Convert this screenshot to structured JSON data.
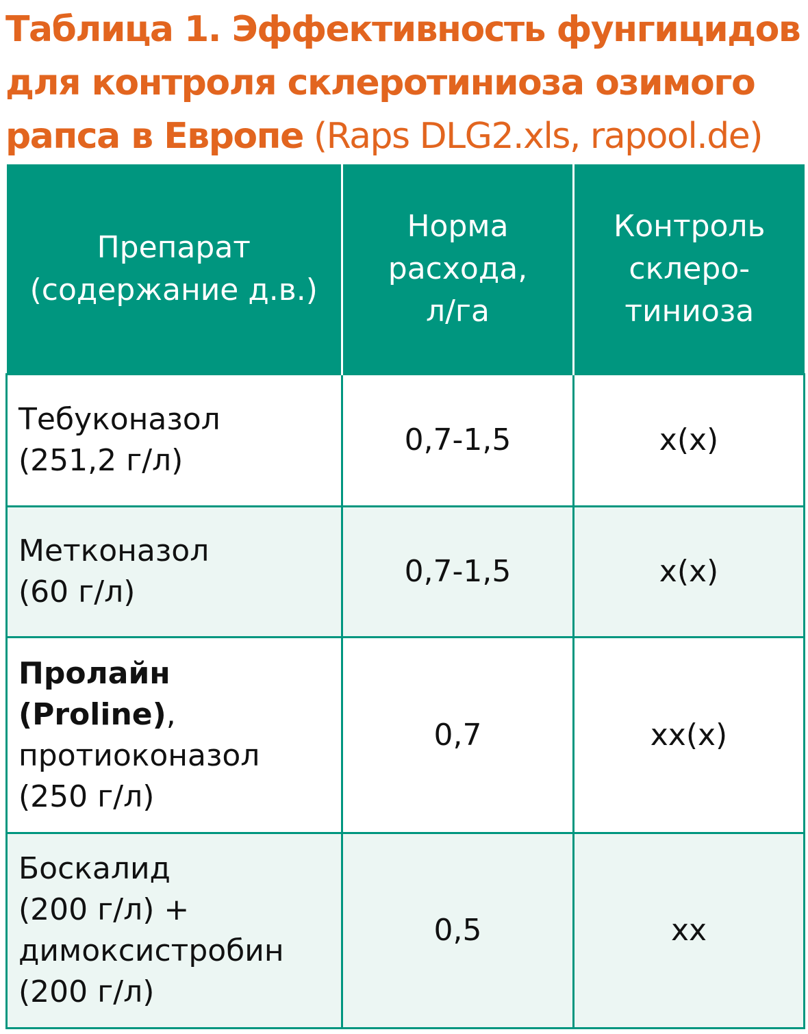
{
  "title": {
    "bold": "Таблица 1. Эффективность фунгицидов для контроля склеротиниоза озимого рапса в Европе",
    "source": " (Raps DLG2.xls, rapool.de)"
  },
  "table": {
    "headers": [
      {
        "lines": [
          "Препарат",
          "(содержание д.в.)"
        ]
      },
      {
        "lines": [
          "Норма",
          "расхода,",
          "л/га"
        ]
      },
      {
        "lines": [
          "Контроль",
          "склеро-",
          "тиниоза"
        ]
      }
    ],
    "rows": [
      {
        "name_lines": [
          "Тебуконазол",
          "(251,2 г/л)"
        ],
        "rate": "0,7-1,5",
        "control": "x(x)"
      },
      {
        "name_lines": [
          "Метконазол",
          "(60 г/л)"
        ],
        "rate": "0,7-1,5",
        "control": "x(x)"
      },
      {
        "name_bold_1": "Пролайн",
        "name_bold_2": "(Proline)",
        "name_comma": ",",
        "name_lines": [
          "протиоконазол",
          "(250 г/л)"
        ],
        "rate": "0,7",
        "control": "xx(x)"
      },
      {
        "name_lines": [
          "Боскалид",
          "(200 г/л) +",
          "димоксистробин",
          "(200 г/л)"
        ],
        "rate": "0,5",
        "control": "xx"
      }
    ]
  },
  "colors": {
    "title": "#e2651f",
    "header_bg": "#00967f",
    "border": "#00967f",
    "alt_row_bg": "#ecf6f3"
  }
}
